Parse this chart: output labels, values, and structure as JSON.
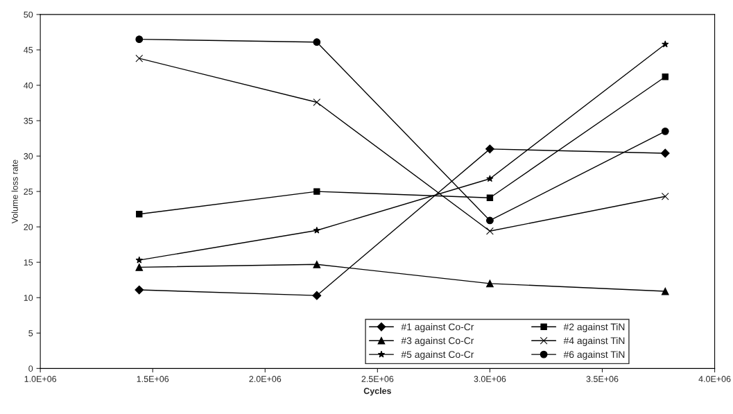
{
  "chart_data": {
    "type": "line",
    "xlabel": "Cycles",
    "ylabel": "Volume loss rate",
    "x": [
      1440000,
      2230000,
      3000000,
      3780000
    ],
    "xlim": [
      1000000,
      4000000
    ],
    "xticks": [
      {
        "value": 1000000,
        "label": "1.0E+06"
      },
      {
        "value": 1500000,
        "label": "1.5E+06"
      },
      {
        "value": 2000000,
        "label": "2.0E+06"
      },
      {
        "value": 2500000,
        "label": "2.5E+06"
      },
      {
        "value": 3000000,
        "label": "3.0E+06"
      },
      {
        "value": 3500000,
        "label": "3.5E+06"
      },
      {
        "value": 4000000,
        "label": "4.0E+06"
      }
    ],
    "ylim": [
      0,
      50
    ],
    "yticks": [
      0,
      5,
      10,
      15,
      20,
      25,
      30,
      35,
      40,
      45,
      50
    ],
    "grid": false,
    "legend": "bottom right",
    "line_style": "solid",
    "series": [
      {
        "name": "#1 against Co-Cr",
        "color": "#000000",
        "marker": "diamond",
        "values": [
          11.1,
          10.3,
          31.0,
          30.4
        ]
      },
      {
        "name": "#2 against TiN",
        "color": "#000000",
        "marker": "square",
        "values": [
          21.8,
          25.0,
          24.1,
          41.2
        ]
      },
      {
        "name": "#3 against Co-Cr",
        "color": "#000000",
        "marker": "triangle",
        "values": [
          14.3,
          14.7,
          12.0,
          10.9
        ]
      },
      {
        "name": "#4 against TiN",
        "color": "#000000",
        "marker": "cross",
        "values": [
          43.8,
          37.6,
          19.4,
          24.3
        ]
      },
      {
        "name": "#5 against Co-Cr",
        "color": "#000000",
        "marker": "star",
        "values": [
          15.3,
          19.5,
          26.8,
          45.8
        ]
      },
      {
        "name": "#6 against TiN",
        "color": "#000000",
        "marker": "circle",
        "values": [
          46.5,
          46.1,
          20.9,
          33.5
        ]
      }
    ]
  }
}
